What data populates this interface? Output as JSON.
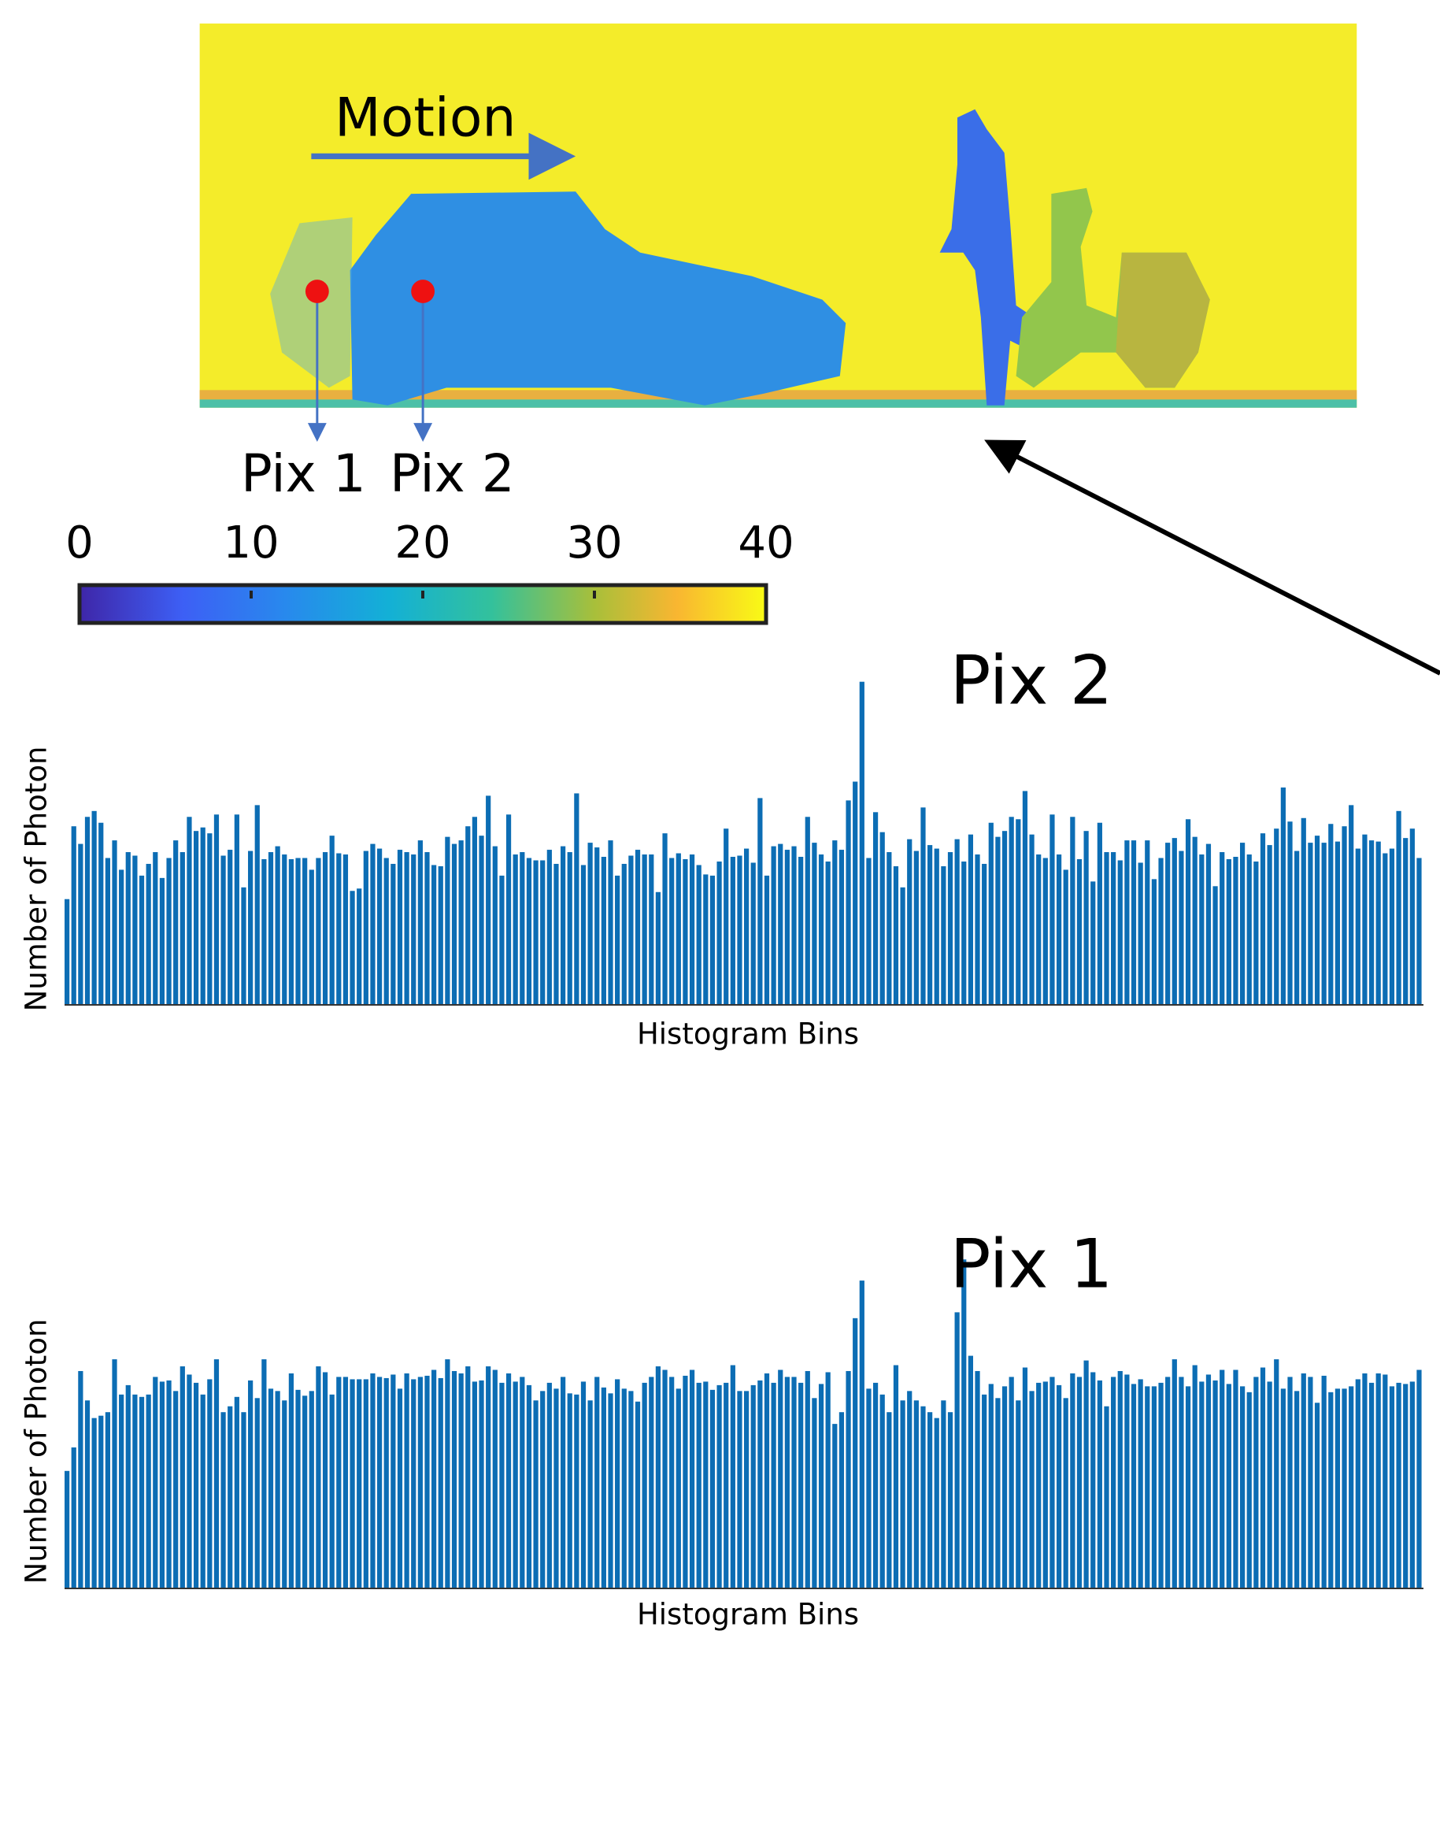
{
  "figure": {
    "annotation": "Motion",
    "pixel_labels": [
      "Pix 1",
      "Pix 2"
    ]
  },
  "colorbar": {
    "lim": [
      0,
      40
    ],
    "ticks": [
      0,
      10,
      20,
      30,
      40
    ]
  },
  "chart_data": [
    {
      "type": "bar",
      "title": "Pix 2",
      "xlabel": "Histogram Bins",
      "ylabel": "Number of Photon",
      "color": "#0c6db4",
      "ylim": [
        0,
        300
      ],
      "values": [
        90,
        152,
        137,
        160,
        165,
        155,
        125,
        140,
        115,
        130,
        127,
        110,
        120,
        130,
        108,
        125,
        140,
        130,
        160,
        148,
        151,
        146,
        162,
        127,
        132,
        162,
        100,
        131,
        170,
        124,
        130,
        135,
        128,
        124,
        125,
        125,
        115,
        125,
        130,
        144,
        129,
        128,
        97,
        99,
        131,
        137,
        133,
        125,
        120,
        132,
        130,
        128,
        140,
        130,
        119,
        118,
        143,
        137,
        140,
        152,
        160,
        144,
        178,
        135,
        110,
        162,
        128,
        130,
        125,
        123,
        123,
        132,
        120,
        135,
        130,
        180,
        119,
        138,
        134,
        126,
        140,
        110,
        120,
        127,
        132,
        128,
        128,
        96,
        146,
        125,
        129,
        124,
        128,
        119,
        111,
        110,
        122,
        150,
        126,
        127,
        133,
        121,
        176,
        110,
        135,
        137,
        132,
        135,
        126,
        160,
        138,
        128,
        122,
        140,
        132,
        174,
        190,
        275,
        125,
        164,
        147,
        130,
        118,
        100,
        141,
        131,
        168,
        136,
        133,
        118,
        130,
        141,
        122,
        145,
        128,
        120,
        155,
        143,
        148,
        160,
        158,
        182,
        145,
        128,
        125,
        162,
        128,
        115,
        160,
        124,
        148,
        105,
        155,
        130,
        130,
        123,
        140,
        140,
        121,
        140,
        107,
        125,
        138,
        142,
        131,
        158,
        143,
        128,
        137,
        101,
        130,
        124,
        126,
        138,
        128,
        122,
        146,
        136,
        150,
        185,
        156,
        131,
        159,
        138,
        144,
        138,
        154,
        139,
        152,
        170,
        133,
        145,
        140,
        139,
        129,
        133,
        165,
        142,
        150,
        125
      ]
    },
    {
      "type": "bar",
      "title": "Pix 1",
      "xlabel": "Histogram Bins",
      "ylabel": "Number of Photon",
      "color": "#0c6db4",
      "ylim": [
        0,
        300
      ],
      "values": [
        100,
        120,
        185,
        160,
        145,
        147,
        150,
        195,
        165,
        173,
        165,
        163,
        165,
        180,
        176,
        177,
        168,
        189,
        182,
        175,
        165,
        178,
        195,
        150,
        155,
        163,
        150,
        177,
        162,
        195,
        170,
        168,
        160,
        183,
        169,
        164,
        168,
        189,
        184,
        165,
        180,
        180,
        178,
        178,
        178,
        183,
        180,
        179,
        182,
        170,
        183,
        178,
        180,
        181,
        186,
        179,
        195,
        185,
        183,
        189,
        176,
        177,
        189,
        186,
        175,
        183,
        176,
        180,
        173,
        160,
        168,
        175,
        170,
        180,
        166,
        165,
        176,
        160,
        180,
        171,
        166,
        178,
        170,
        168,
        159,
        175,
        180,
        189,
        186,
        180,
        170,
        181,
        186,
        175,
        176,
        169,
        173,
        175,
        190,
        168,
        168,
        173,
        177,
        183,
        175,
        186,
        180,
        180,
        175,
        185,
        162,
        174,
        184,
        140,
        150,
        185,
        230,
        262,
        170,
        175,
        165,
        150,
        190,
        160,
        168,
        160,
        155,
        150,
        145,
        160,
        150,
        235,
        280,
        198,
        185,
        165,
        174,
        162,
        172,
        180,
        160,
        188,
        168,
        175,
        176,
        180,
        173,
        162,
        183,
        180,
        194,
        184,
        177,
        155,
        180,
        185,
        182,
        174,
        178,
        172,
        172,
        175,
        180,
        195,
        180,
        172,
        190,
        176,
        182,
        177,
        186,
        174,
        186,
        172,
        167,
        180,
        188,
        176,
        195,
        170,
        180,
        168,
        183,
        180,
        158,
        181,
        167,
        170,
        170,
        172,
        178,
        183,
        175,
        183,
        182,
        172,
        175,
        174,
        176,
        186
      ]
    }
  ]
}
